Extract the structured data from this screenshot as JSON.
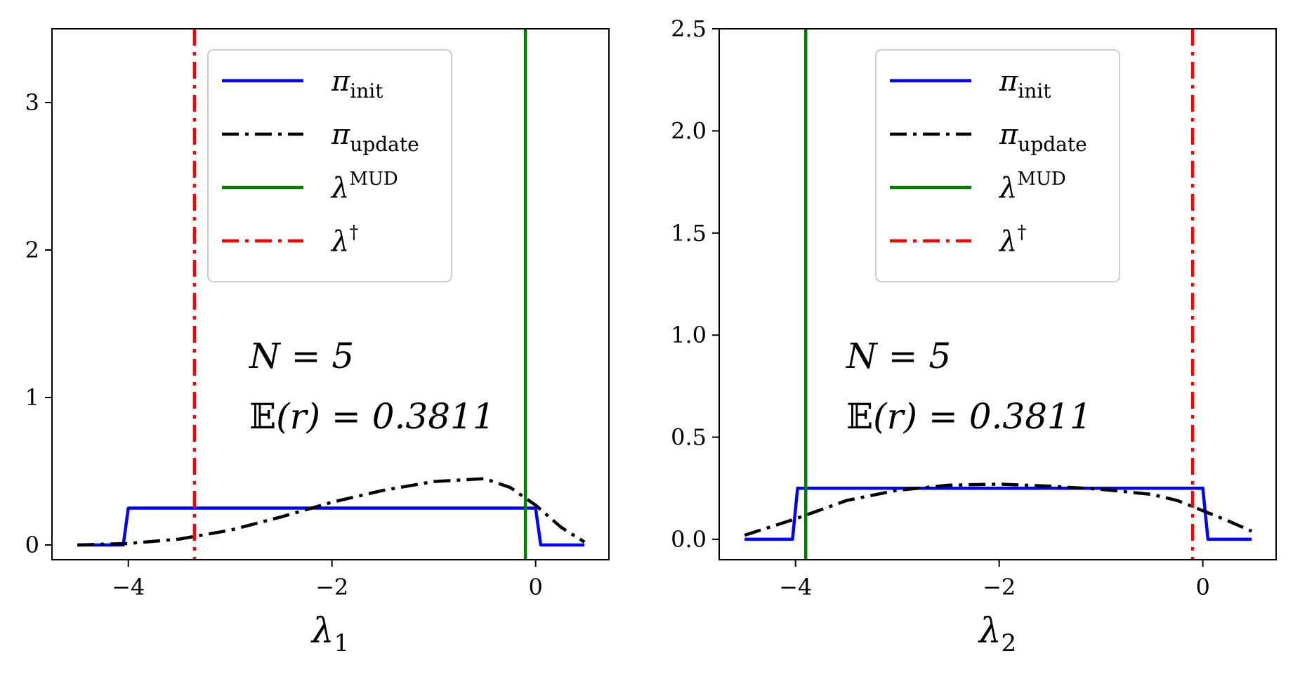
{
  "chart_data": [
    {
      "type": "line",
      "xlabel": {
        "base": "λ",
        "sub": "1"
      },
      "xlim": [
        -4.75,
        0.72
      ],
      "ylim": [
        -0.1,
        3.5
      ],
      "xticks": [
        -4,
        -2,
        0
      ],
      "yticks": [
        0,
        1,
        2,
        3
      ],
      "xtick_labels": [
        "−4",
        "−2",
        "0"
      ],
      "ytick_labels": [
        "0",
        "1",
        "2",
        "3"
      ],
      "legend_position": "upper-center",
      "annotation": {
        "line1": "N = 5",
        "line2_bb": "𝔼",
        "line2_rest": "(r) = 0.3811"
      },
      "series": [
        {
          "key": "init",
          "label_base": "π",
          "label_sub": "init",
          "label_sup": "",
          "color": "#0000ff",
          "dash": "solid",
          "x": [
            -4.5,
            -4.05,
            -4.0,
            0.0,
            0.05,
            0.48
          ],
          "y": [
            0.0,
            0.0,
            0.25,
            0.25,
            0.0,
            0.0
          ]
        },
        {
          "key": "update",
          "label_base": "π",
          "label_sub": "update",
          "label_sup": "",
          "color": "#000000",
          "dash": "dashdot",
          "x": [
            -4.5,
            -4.0,
            -3.5,
            -3.0,
            -2.5,
            -2.0,
            -1.5,
            -1.0,
            -0.5,
            -0.25,
            0.0,
            0.25,
            0.48
          ],
          "y": [
            0.0,
            0.01,
            0.04,
            0.1,
            0.19,
            0.29,
            0.37,
            0.43,
            0.45,
            0.39,
            0.27,
            0.12,
            0.02
          ]
        },
        {
          "key": "mud",
          "label_base": "λ",
          "label_sub": "",
          "label_sup": "MUD",
          "color": "#008000",
          "dash": "solid",
          "vline": -0.1
        },
        {
          "key": "dagger",
          "label_base": "λ",
          "label_sub": "",
          "label_sup": "†",
          "color": "#ff0000",
          "dash": "dashdot",
          "vline": -3.35
        }
      ]
    },
    {
      "type": "line",
      "xlabel": {
        "base": "λ",
        "sub": "2"
      },
      "xlim": [
        -4.75,
        0.72
      ],
      "ylim": [
        -0.1,
        2.5
      ],
      "xticks": [
        -4,
        -2,
        0
      ],
      "yticks": [
        0.0,
        0.5,
        1.0,
        1.5,
        2.0,
        2.5
      ],
      "xtick_labels": [
        "−4",
        "−2",
        "0"
      ],
      "ytick_labels": [
        "0.0",
        "0.5",
        "1.0",
        "1.5",
        "2.0",
        "2.5"
      ],
      "legend_position": "upper-center",
      "annotation": {
        "line1": "N = 5",
        "line2_bb": "𝔼",
        "line2_rest": "(r) = 0.3811"
      },
      "series": [
        {
          "key": "init",
          "label_base": "π",
          "label_sub": "init",
          "label_sup": "",
          "color": "#0000ff",
          "dash": "solid",
          "x": [
            -4.5,
            -4.03,
            -3.98,
            0.0,
            0.05,
            0.48
          ],
          "y": [
            0.0,
            0.0,
            0.25,
            0.25,
            0.0,
            0.0
          ]
        },
        {
          "key": "update",
          "label_base": "π",
          "label_sub": "update",
          "label_sup": "",
          "color": "#000000",
          "dash": "dashdot",
          "x": [
            -4.5,
            -4.0,
            -3.5,
            -3.0,
            -2.5,
            -2.0,
            -1.5,
            -1.0,
            -0.5,
            -0.25,
            0.0,
            0.25,
            0.48
          ],
          "y": [
            0.02,
            0.1,
            0.19,
            0.24,
            0.265,
            0.27,
            0.26,
            0.245,
            0.22,
            0.19,
            0.14,
            0.09,
            0.04
          ]
        },
        {
          "key": "mud",
          "label_base": "λ",
          "label_sub": "",
          "label_sup": "MUD",
          "color": "#008000",
          "dash": "solid",
          "vline": -3.9
        },
        {
          "key": "dagger",
          "label_base": "λ",
          "label_sub": "",
          "label_sup": "†",
          "color": "#ff0000",
          "dash": "dashdot",
          "vline": -0.1
        }
      ]
    }
  ]
}
